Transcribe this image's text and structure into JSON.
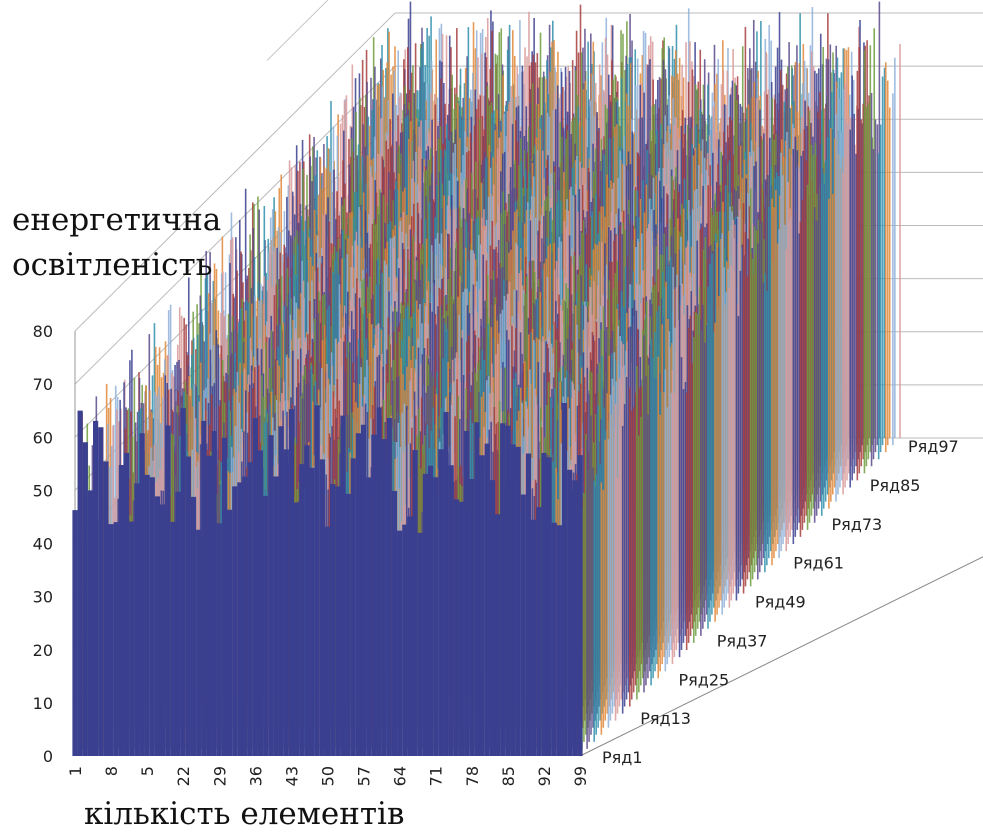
{
  "chart_data": {
    "type": "bar",
    "style": "3d-column",
    "ylabel_lines": [
      "енергетична",
      "освітленість"
    ],
    "xlabel": "кількість елементів",
    "ylim": [
      0,
      80
    ],
    "yticks": [
      0,
      10,
      20,
      30,
      40,
      50,
      60,
      70,
      80
    ],
    "xticks": [
      "1",
      "8",
      "5",
      "22",
      "29",
      "36",
      "43",
      "50",
      "57",
      "64",
      "71",
      "78",
      "85",
      "92",
      "99"
    ],
    "series_ticks": [
      "Ряд1",
      "Ряд13",
      "Ряд25",
      "Ряд37",
      "Ряд49",
      "Ряд61",
      "Ряд73",
      "Ряд85",
      "Ряд97"
    ],
    "category_count": 99,
    "series_count": 100,
    "value_range_estimate": [
      35,
      80
    ],
    "gridlines": true,
    "colors": [
      "#3b3f8f",
      "#a63d3d",
      "#6f9b3e",
      "#5b4a8a",
      "#2f8fab",
      "#e0883a",
      "#8fb0d8",
      "#d99a9a"
    ]
  }
}
